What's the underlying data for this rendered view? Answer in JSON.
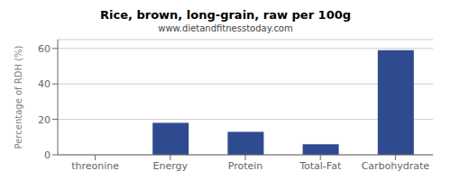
{
  "chart_data": {
    "type": "bar",
    "title": "Rice, brown, long-grain, raw per 100g",
    "subtitle": "www.dietandfitnesstoday.com",
    "categories": [
      "threonine",
      "Energy",
      "Protein",
      "Total-Fat",
      "Carbohydrate"
    ],
    "values": [
      0,
      18,
      13,
      6,
      59
    ],
    "color": "#2e4b8f",
    "ylabel": "Percentage of RDH (%)",
    "ylim": [
      0,
      65
    ],
    "yticks": [
      0,
      20,
      40,
      60
    ],
    "grid": true
  }
}
